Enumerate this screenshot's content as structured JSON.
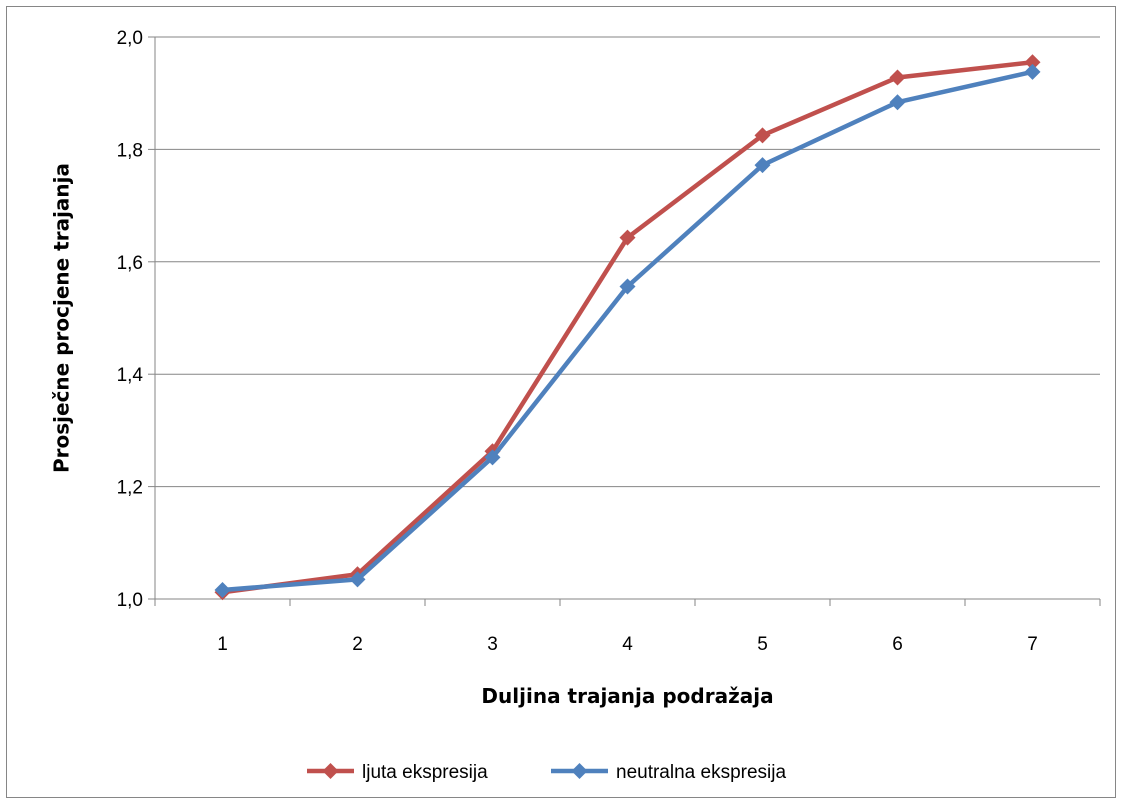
{
  "chart_data": {
    "type": "line",
    "categories": [
      "1",
      "2",
      "3",
      "4",
      "5",
      "6",
      "7"
    ],
    "series": [
      {
        "name": "ljuta ekspresija",
        "color": "#C0504D",
        "values": [
          1.012,
          1.044,
          1.263,
          1.643,
          1.825,
          1.928,
          1.955
        ]
      },
      {
        "name": "neutralna ekspresija",
        "color": "#4F81BD",
        "values": [
          1.016,
          1.035,
          1.252,
          1.556,
          1.772,
          1.884,
          1.938
        ]
      }
    ],
    "xlabel": "Duljina trajanja podražaja",
    "ylabel": "Prosječne  procjene  trajanja",
    "ylim": [
      1.0,
      2.0
    ],
    "yticks": [
      "1,0",
      "1,2",
      "1,4",
      "1,6",
      "1,8",
      "2,0"
    ],
    "grid": true,
    "legend": "bottom",
    "marker": "diamond"
  }
}
